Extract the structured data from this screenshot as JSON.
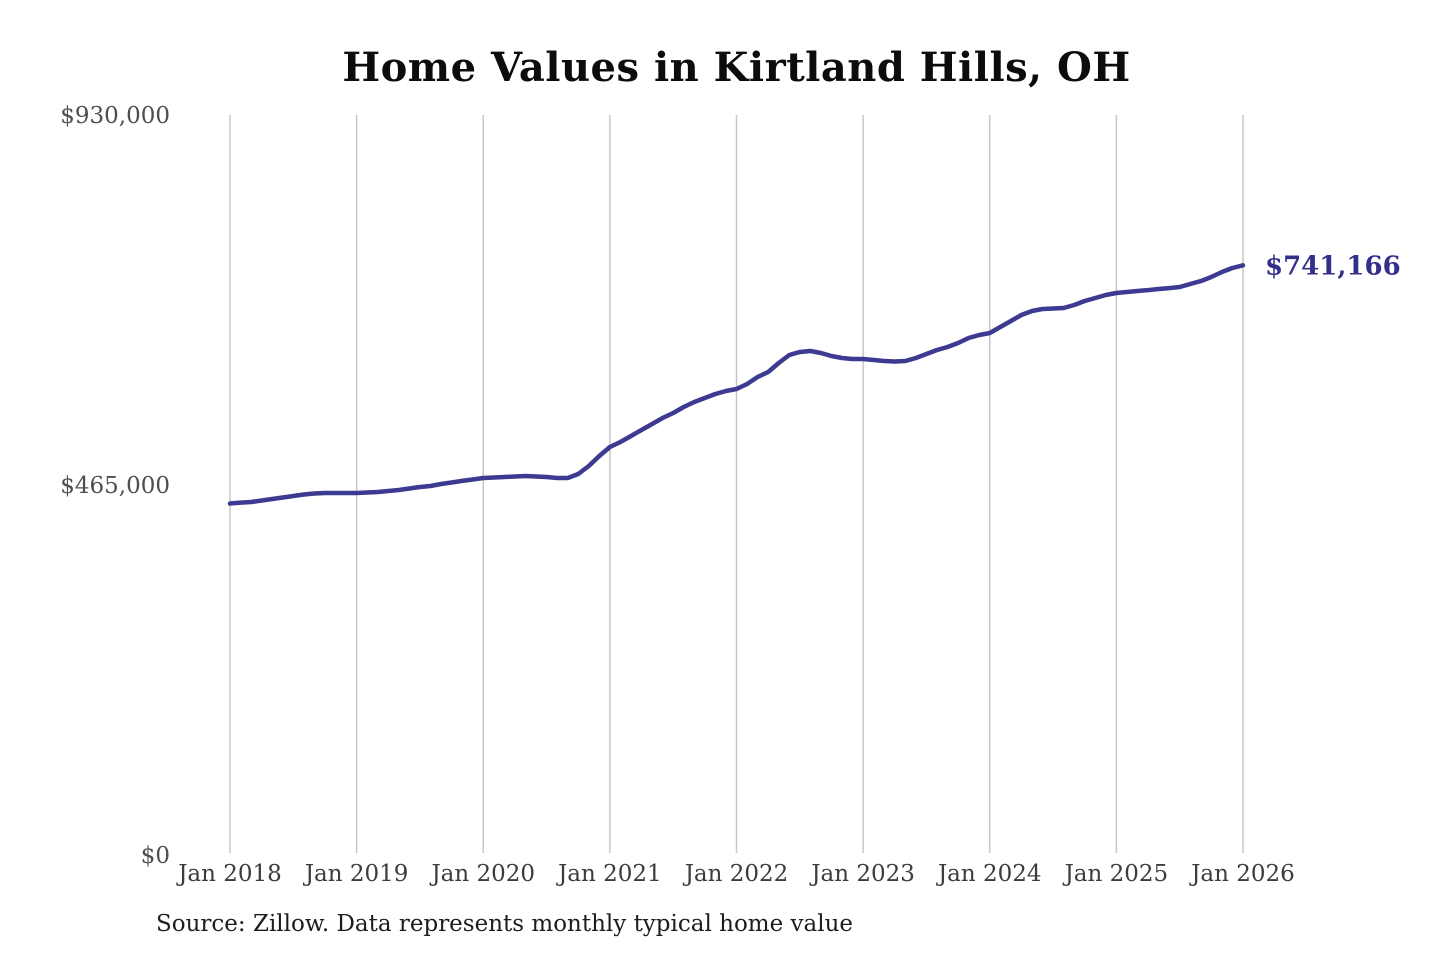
{
  "title": "Home Values in Kirtland Hills, OH",
  "source_note": "Source: Zillow. Data represents monthly typical home value",
  "colors": {
    "line": "#3d3a92",
    "end_label": "#34308a",
    "gridline": "#c4c4c4",
    "title_text": "#0c0c0c",
    "axis_text": "#3c3c3c",
    "background": "#ffffff"
  },
  "chart_data": {
    "type": "line",
    "title": "Home Values in Kirtland Hills, OH",
    "series_name": "Monthly typical home value",
    "x_start": "Jan 2018",
    "x_end": "Jan 2026",
    "x_cadence": "monthly",
    "x_tick_labels": [
      "Jan 2018",
      "Jan 2019",
      "Jan 2020",
      "Jan 2021",
      "Jan 2022",
      "Jan 2023",
      "Jan 2024",
      "Jan 2025",
      "Jan 2026"
    ],
    "y_ticks": [
      {
        "value": 0,
        "label": "$0"
      },
      {
        "value": 465000,
        "label": "$465,000"
      },
      {
        "value": 930000,
        "label": "$930,000"
      }
    ],
    "ylim": [
      0,
      930000
    ],
    "grid": "vertical-only",
    "legend": "none",
    "end_label": "$741,166",
    "end_value": 741166,
    "values": [
      441700,
      442900,
      443600,
      445500,
      447400,
      449300,
      451200,
      453100,
      454300,
      455000,
      455000,
      455000,
      455000,
      455600,
      456200,
      457500,
      458700,
      460600,
      462500,
      463800,
      466300,
      468200,
      470100,
      471900,
      473800,
      474400,
      475000,
      475700,
      476300,
      475700,
      475000,
      473800,
      473800,
      478800,
      488900,
      501400,
      512800,
      519000,
      526600,
      534100,
      541700,
      549200,
      555500,
      563000,
      569300,
      574300,
      579400,
      583100,
      585600,
      591900,
      600700,
      607000,
      618300,
      628400,
      632200,
      633400,
      630900,
      627100,
      624600,
      623400,
      623400,
      622100,
      620800,
      620200,
      620800,
      624600,
      629600,
      634700,
      638400,
      643500,
      649800,
      653500,
      656000,
      663600,
      671100,
      678600,
      683700,
      686200,
      686800,
      687400,
      691200,
      696200,
      700000,
      703800,
      706300,
      707500,
      708800,
      710000,
      711300,
      712500,
      713800,
      717600,
      721300,
      726400,
      732700,
      737700,
      741166
    ]
  }
}
